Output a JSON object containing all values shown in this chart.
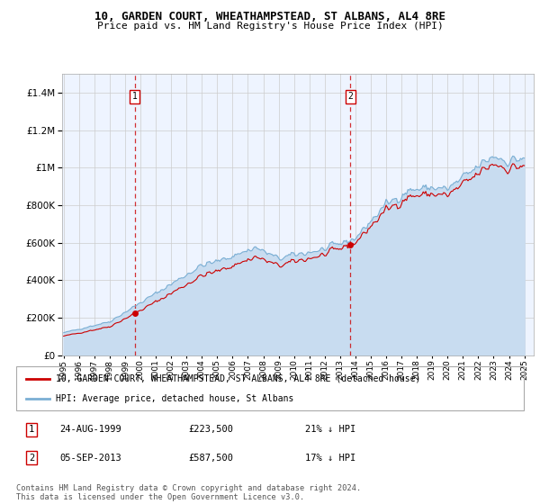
{
  "title1": "10, GARDEN COURT, WHEATHAMPSTEAD, ST ALBANS, AL4 8RE",
  "title2": "Price paid vs. HM Land Registry's House Price Index (HPI)",
  "legend_label1": "10, GARDEN COURT, WHEATHAMPSTEAD, ST ALBANS, AL4 8RE (detached house)",
  "legend_label2": "HPI: Average price, detached house, St Albans",
  "marker1_date": "24-AUG-1999",
  "marker1_price": "£223,500",
  "marker1_pct": "21% ↓ HPI",
  "marker2_date": "05-SEP-2013",
  "marker2_price": "£587,500",
  "marker2_pct": "17% ↓ HPI",
  "footer": "Contains HM Land Registry data © Crown copyright and database right 2024.\nThis data is licensed under the Open Government Licence v3.0.",
  "line1_color": "#cc0000",
  "line2_color": "#7bafd4",
  "fill_color": "#c8dcf0",
  "ylim": [
    0,
    1500000
  ],
  "sale1_year": 1999.622,
  "sale1_price": 223500,
  "sale2_year": 2013.674,
  "sale2_price": 587500
}
